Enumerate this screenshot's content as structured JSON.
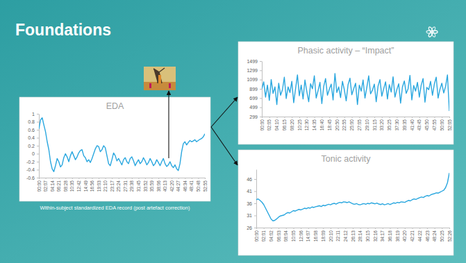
{
  "slide": {
    "title": "Foundations",
    "caption": "Within-subject standardized EDA record (post artefact correction)"
  },
  "chart_data": [
    {
      "type": "line",
      "title": "EDA",
      "color": "#2aa7df",
      "grid": false,
      "categories": [
        "00:00",
        null,
        null,
        null,
        "02:07",
        null,
        null,
        null,
        "04:14",
        null,
        null,
        null,
        "06:21",
        null,
        null,
        null,
        "08:28",
        null,
        null,
        null,
        "10:35",
        null,
        null,
        null,
        "12:42",
        null,
        null,
        null,
        "14:49",
        null,
        null,
        null,
        "16:56",
        null,
        null,
        null,
        "19:03",
        null,
        null,
        null,
        "21:10",
        null,
        null,
        null,
        "23:17",
        null,
        null,
        null,
        "25:24",
        null,
        null,
        null,
        "27:31",
        null,
        null,
        null,
        "29:38",
        null,
        null,
        null,
        "31:45",
        null,
        null,
        null,
        "33:52",
        null,
        null,
        null,
        "35:59",
        null,
        null,
        null,
        "38:06",
        null,
        null,
        null,
        "40:13",
        null,
        null,
        null,
        "42:20",
        null,
        null,
        null,
        "44:27",
        null,
        null,
        null,
        "46:34",
        null,
        null,
        null,
        "48:41",
        null,
        null,
        null,
        "50:48",
        null,
        null,
        null,
        "52:55"
      ],
      "values": [
        0.62,
        0.85,
        0.9,
        0.72,
        0.55,
        0.3,
        0.1,
        -0.2,
        -0.38,
        -0.45,
        -0.3,
        -0.12,
        -0.2,
        -0.33,
        -0.28,
        -0.1,
        0,
        -0.08,
        -0.2,
        -0.05,
        0.05,
        -0.05,
        -0.15,
        -0.08,
        0.02,
        0.08,
        0.1,
        -0.05,
        -0.1,
        -0.2,
        -0.15,
        -0.22,
        -0.12,
        0,
        0.12,
        0.2,
        0.18,
        0.05,
        0.1,
        0.2,
        0.15,
        -0.05,
        -0.25,
        -0.3,
        -0.15,
        0.02,
        -0.05,
        -0.18,
        -0.12,
        -0.2,
        -0.28,
        -0.15,
        -0.1,
        -0.2,
        -0.25,
        -0.12,
        -0.08,
        -0.18,
        -0.3,
        -0.22,
        -0.15,
        -0.25,
        -0.2,
        -0.1,
        -0.18,
        -0.28,
        -0.22,
        -0.12,
        -0.2,
        -0.3,
        -0.25,
        -0.15,
        -0.22,
        -0.3,
        -0.2,
        -0.12,
        -0.25,
        -0.32,
        -0.28,
        -0.2,
        -0.3,
        -0.35,
        -0.28,
        -0.38,
        -0.42,
        -0.25,
        0.05,
        0.25,
        0.3,
        0.22,
        0.28,
        0.33,
        0.3,
        0.32,
        0.35,
        0.3,
        0.33,
        0.36,
        0.38,
        0.42,
        0.5
      ],
      "ylim": [
        -0.6,
        1
      ],
      "yticks": [
        -0.6,
        -0.4,
        -0.2,
        0,
        0.2,
        0.4,
        0.6,
        0.8,
        1
      ]
    },
    {
      "type": "line",
      "title": "Phasic activity – “Impact”",
      "color": "#2aa7df",
      "grid": false,
      "categories": [
        "00:00",
        null,
        null,
        null,
        "02:05",
        null,
        null,
        null,
        "04:10",
        null,
        null,
        null,
        "06:15",
        null,
        null,
        null,
        "08:20",
        null,
        null,
        null,
        "10:25",
        null,
        null,
        null,
        "12:30",
        null,
        null,
        null,
        "14:35",
        null,
        null,
        null,
        "16:40",
        null,
        null,
        null,
        "18:45",
        null,
        null,
        null,
        "20:50",
        null,
        null,
        null,
        "22:55",
        null,
        null,
        null,
        "25:00",
        null,
        null,
        null,
        "27:05",
        null,
        null,
        null,
        "29:10",
        null,
        null,
        null,
        "31:15",
        null,
        null,
        null,
        "33:20",
        null,
        null,
        null,
        "35:25",
        null,
        null,
        null,
        "37:30",
        null,
        null,
        null,
        "39:35",
        null,
        null,
        null,
        "41:40",
        null,
        null,
        null,
        "43:45",
        null,
        null,
        null,
        "45:50",
        null,
        null,
        null,
        "47:55",
        null,
        null,
        null,
        "50:00",
        null,
        null,
        null,
        "52:05"
      ],
      "values": [
        899,
        1050,
        720,
        980,
        650,
        1100,
        800,
        940,
        560,
        1020,
        760,
        880,
        1150,
        690,
        940,
        820,
        1060,
        600,
        900,
        1200,
        750,
        980,
        680,
        1090,
        840,
        620,
        1010,
        900,
        1180,
        700,
        860,
        1040,
        580,
        950,
        1120,
        760,
        890,
        1000,
        660,
        1230,
        820,
        940,
        710,
        1060,
        880,
        640,
        990,
        1130,
        770,
        900,
        1020,
        560,
        980,
        850,
        1090,
        700,
        930,
        1180,
        790,
        870,
        1000,
        620,
        960,
        1100,
        740,
        900,
        1050,
        680,
        990,
        830,
        1160,
        720,
        880,
        1010,
        590,
        940,
        1070,
        800,
        900,
        1190,
        660,
        970,
        850,
        1040,
        720,
        980,
        1120,
        610,
        930,
        880,
        1060,
        760,
        1000,
        1150,
        700,
        890,
        1020,
        810,
        950,
        1200,
        420
      ],
      "ylim": [
        299,
        1499
      ],
      "yticks": [
        299,
        499,
        699,
        899,
        1099,
        1299,
        1499
      ]
    },
    {
      "type": "line",
      "title": "Tonic activity",
      "color": "#2aa7df",
      "grid": false,
      "categories": [
        "00:00",
        null,
        null,
        null,
        "02:01",
        null,
        null,
        null,
        "04:02",
        null,
        null,
        null,
        "06:03",
        null,
        null,
        null,
        "08:04",
        null,
        null,
        null,
        "10:05",
        null,
        null,
        null,
        "12:06",
        null,
        null,
        null,
        "14:07",
        null,
        null,
        null,
        "16:08",
        null,
        null,
        null,
        "18:09",
        null,
        null,
        null,
        "20:10",
        null,
        null,
        null,
        "22:11",
        null,
        null,
        null,
        "24:12",
        null,
        null,
        null,
        "26:13",
        null,
        null,
        null,
        "28:14",
        null,
        null,
        null,
        "30:15",
        null,
        null,
        null,
        "32:16",
        null,
        null,
        null,
        "34:17",
        null,
        null,
        null,
        "36:18",
        null,
        null,
        null,
        "38:19",
        null,
        null,
        null,
        "40:20",
        null,
        null,
        null,
        "42:21",
        null,
        null,
        null,
        "44:22",
        null,
        null,
        null,
        "46:23",
        null,
        null,
        null,
        "48:24",
        null,
        null,
        null,
        "50:25",
        null,
        null,
        null,
        "52:26"
      ],
      "values": [
        37.5,
        37.8,
        37.2,
        36.5,
        35.5,
        34,
        32.5,
        31,
        29.5,
        28.8,
        29,
        29.6,
        30.3,
        30.8,
        31,
        31.2,
        31.8,
        32.2,
        32,
        32.5,
        33,
        32.8,
        33.2,
        33.5,
        33.3,
        33.6,
        34,
        33.8,
        34.2,
        34,
        34.5,
        34.3,
        34.6,
        34.8,
        35,
        34.7,
        35.2,
        35,
        35.3,
        35.6,
        35.4,
        35.8,
        36,
        35.7,
        36.1,
        36.4,
        36.2,
        36.6,
        36.5,
        36.3,
        36.6,
        36.2,
        35.8,
        35.6,
        35.9,
        35.5,
        35.4,
        35.7,
        35.9,
        35.6,
        36,
        35.8,
        36.2,
        36,
        35.8,
        36.1,
        35.7,
        35.5,
        35.8,
        35.4,
        35.6,
        35.9,
        35.5,
        35.8,
        36.2,
        36,
        36.4,
        36.2,
        36.6,
        36.5,
        36.4,
        36.8,
        37.2,
        37,
        37.5,
        37.8,
        37.6,
        38,
        38.3,
        38.6,
        38.4,
        38.9,
        39.2,
        39,
        39.5,
        39.8,
        40,
        40.3,
        40.2,
        40.6,
        41,
        41.4,
        42.5,
        44.5,
        48.5
      ],
      "ylim": [
        26,
        50
      ],
      "yticks": [
        26,
        31,
        36,
        41,
        46
      ]
    }
  ]
}
